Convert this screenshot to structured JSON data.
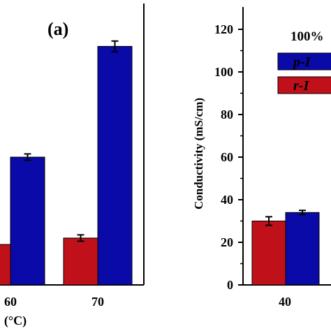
{
  "chart_data": [
    {
      "type": "bar",
      "panel_label": "(a)",
      "xlabel": "(°C)",
      "categories": [
        "60",
        "70"
      ],
      "ylim": [
        0,
        120
      ],
      "series": [
        {
          "color": "#c0101a",
          "values": [
            19,
            22
          ],
          "errors": [
            0,
            1.5
          ]
        },
        {
          "color": "#0a0aa8",
          "values": [
            60,
            112
          ],
          "errors": [
            1.5,
            2.5
          ]
        }
      ]
    },
    {
      "type": "bar",
      "ylabel": "Conductivity (mS/cm)",
      "legend_title": "100%",
      "legend": [
        {
          "label": "p-I",
          "color": "#0a0aa8"
        },
        {
          "label": "r-I",
          "color": "#c0101a"
        }
      ],
      "categories": [
        "40"
      ],
      "ylim": [
        0,
        120
      ],
      "yticks": [
        "0",
        "20",
        "40",
        "60",
        "80",
        "100",
        "120"
      ],
      "series": [
        {
          "color": "#c0101a",
          "values": [
            30
          ],
          "errors": [
            2
          ]
        },
        {
          "color": "#0a0aa8",
          "values": [
            34
          ],
          "errors": [
            1
          ]
        }
      ]
    }
  ]
}
